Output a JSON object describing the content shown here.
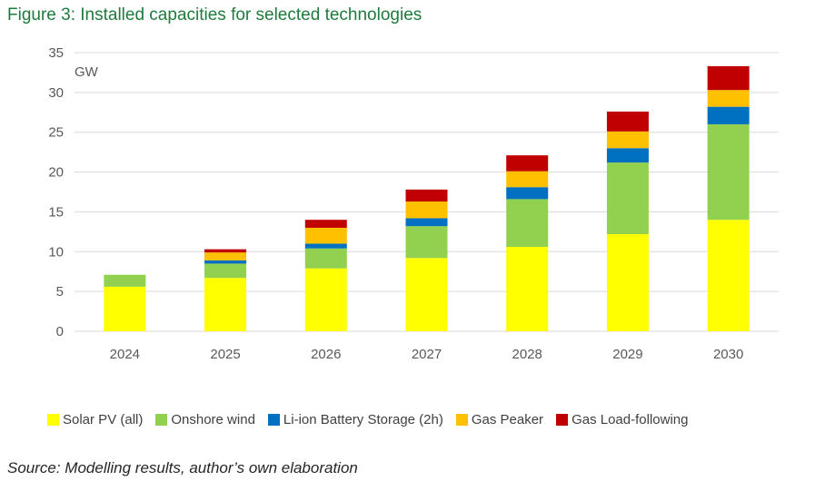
{
  "title": "Figure 3: Installed capacities for selected technologies",
  "source": "Source: Modelling results, author’s own elaboration",
  "chart_data": {
    "type": "bar",
    "stacked": true,
    "title": "Figure 3: Installed capacities for selected technologies",
    "ylabel": "GW",
    "xlabel": "",
    "ylim": [
      0,
      35
    ],
    "yticks": [
      0,
      5,
      10,
      15,
      20,
      25,
      30,
      35
    ],
    "grid": true,
    "legend_position": "bottom",
    "categories": [
      "2024",
      "2025",
      "2026",
      "2027",
      "2028",
      "2029",
      "2030"
    ],
    "series": [
      {
        "name": "Solar PV (all)",
        "color": "#ffff00",
        "values": [
          5.6,
          6.7,
          7.9,
          9.2,
          10.6,
          12.2,
          14.0
        ]
      },
      {
        "name": "Onshore wind",
        "color": "#92d050",
        "values": [
          1.5,
          1.8,
          2.5,
          4.0,
          6.0,
          9.0,
          12.0
        ]
      },
      {
        "name": "Li-ion Battery Storage (2h)",
        "color": "#0070c0",
        "values": [
          0,
          0.4,
          0.6,
          1.0,
          1.5,
          1.8,
          2.2
        ]
      },
      {
        "name": "Gas Peaker",
        "color": "#ffc000",
        "values": [
          0,
          1.0,
          2.0,
          2.1,
          2.0,
          2.1,
          2.1
        ]
      },
      {
        "name": "Gas Load-following",
        "color": "#c00000",
        "values": [
          0,
          0.4,
          1.0,
          1.5,
          2.0,
          2.5,
          3.0
        ]
      }
    ]
  }
}
